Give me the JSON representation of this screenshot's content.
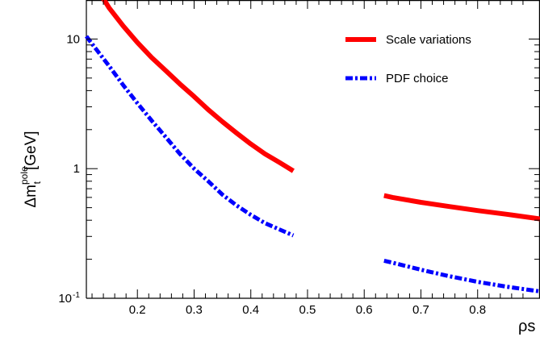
{
  "chart_data": {
    "type": "line",
    "title": "",
    "xlabel": "ρs",
    "ylabel": "Δm_t^pole [GeV]",
    "ylabel_parts": {
      "symbol": "Δm",
      "subscript": "t",
      "superscript": "pole",
      "unit": "[GeV]"
    },
    "xlim": [
      0.11,
      0.91
    ],
    "ylim": [
      0.1,
      20
    ],
    "yscale": "log",
    "x_tick_labels": [
      "0.2",
      "0.3",
      "0.4",
      "0.5",
      "0.6",
      "0.7",
      "0.8"
    ],
    "x_ticks": [
      0.2,
      0.3,
      0.4,
      0.5,
      0.6,
      0.7,
      0.8
    ],
    "y_ticks": [
      {
        "value": 0.1,
        "base": "10",
        "exponent": "-1"
      },
      {
        "value": 1,
        "base": "1",
        "exponent": ""
      },
      {
        "value": 10,
        "base": "10",
        "exponent": ""
      }
    ],
    "grid": false,
    "legend_position": "top-right",
    "series": [
      {
        "name": "Scale variations",
        "color": "#ff0000",
        "style": "solid",
        "segments": [
          [
            [
              0.14,
              20.5
            ],
            [
              0.15,
              17.4
            ],
            [
              0.175,
              12.6
            ],
            [
              0.2,
              9.4
            ],
            [
              0.225,
              7.2
            ],
            [
              0.25,
              5.7
            ],
            [
              0.275,
              4.5
            ],
            [
              0.3,
              3.6
            ],
            [
              0.325,
              2.85
            ],
            [
              0.35,
              2.3
            ],
            [
              0.375,
              1.88
            ],
            [
              0.4,
              1.55
            ],
            [
              0.425,
              1.3
            ],
            [
              0.45,
              1.12
            ],
            [
              0.475,
              0.96
            ]
          ],
          [
            [
              0.635,
              0.62
            ],
            [
              0.65,
              0.6
            ],
            [
              0.7,
              0.55
            ],
            [
              0.75,
              0.51
            ],
            [
              0.8,
              0.475
            ],
            [
              0.85,
              0.445
            ],
            [
              0.91,
              0.41
            ]
          ]
        ]
      },
      {
        "name": "PDF choice",
        "color": "#0000ff",
        "style": "dashdot",
        "segments": [
          [
            [
              0.11,
              10.5
            ],
            [
              0.125,
              8.6
            ],
            [
              0.15,
              6.2
            ],
            [
              0.175,
              4.4
            ],
            [
              0.2,
              3.2
            ],
            [
              0.225,
              2.35
            ],
            [
              0.25,
              1.75
            ],
            [
              0.275,
              1.3
            ],
            [
              0.3,
              1.0
            ],
            [
              0.325,
              0.8
            ],
            [
              0.35,
              0.63
            ],
            [
              0.375,
              0.52
            ],
            [
              0.4,
              0.44
            ],
            [
              0.425,
              0.38
            ],
            [
              0.45,
              0.34
            ],
            [
              0.475,
              0.305
            ]
          ],
          [
            [
              0.635,
              0.195
            ],
            [
              0.65,
              0.188
            ],
            [
              0.7,
              0.166
            ],
            [
              0.75,
              0.148
            ],
            [
              0.8,
              0.134
            ],
            [
              0.85,
              0.123
            ],
            [
              0.91,
              0.113
            ]
          ]
        ]
      }
    ]
  }
}
